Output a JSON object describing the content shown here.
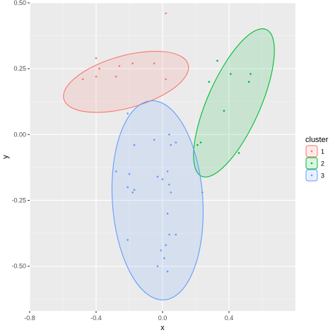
{
  "chart_data": {
    "type": "scatter",
    "xlabel": "x",
    "ylabel": "y",
    "xlim": [
      -0.8,
      0.8
    ],
    "ylim": [
      -0.67,
      0.5
    ],
    "xticks": [
      -0.8,
      -0.4,
      0.0,
      0.4
    ],
    "xtick_labels": [
      "-0.8",
      "-0.4",
      "0.0",
      "0.4"
    ],
    "yticks": [
      0.5,
      0.25,
      0.0,
      -0.25,
      -0.5
    ],
    "ytick_labels": [
      "0.50",
      "0.25",
      "0.00",
      "-0.25",
      "-0.50"
    ],
    "grid": true,
    "legend": {
      "title": "cluster",
      "placement": "right"
    },
    "series": [
      {
        "name": "1",
        "color": "#F8766D",
        "points": [
          {
            "x": -0.48,
            "y": 0.21
          },
          {
            "x": -0.4,
            "y": 0.29
          },
          {
            "x": -0.4,
            "y": 0.22
          },
          {
            "x": -0.38,
            "y": 0.25
          },
          {
            "x": -0.38,
            "y": 0.25
          },
          {
            "x": -0.28,
            "y": 0.22
          },
          {
            "x": -0.26,
            "y": 0.26
          },
          {
            "x": -0.18,
            "y": 0.27
          },
          {
            "x": -0.05,
            "y": 0.27
          },
          {
            "x": 0.02,
            "y": 0.46
          },
          {
            "x": 0.02,
            "y": 0.21
          }
        ],
        "ellipse": {
          "cx": -0.22,
          "cy": 0.2,
          "rx": 0.38,
          "ry": 0.1,
          "angle_deg": 10
        }
      },
      {
        "name": "2",
        "color": "#00BA38",
        "points": [
          {
            "x": 0.21,
            "y": -0.04
          },
          {
            "x": 0.23,
            "y": -0.03
          },
          {
            "x": 0.28,
            "y": 0.2
          },
          {
            "x": 0.33,
            "y": 0.28
          },
          {
            "x": 0.37,
            "y": 0.09
          },
          {
            "x": 0.41,
            "y": 0.23
          },
          {
            "x": 0.46,
            "y": -0.07
          },
          {
            "x": 0.52,
            "y": 0.2
          },
          {
            "x": 0.53,
            "y": 0.23
          }
        ],
        "ellipse": {
          "cx": 0.43,
          "cy": 0.12,
          "rx": 0.34,
          "ry": 0.13,
          "angle_deg": 55
        }
      },
      {
        "name": "3",
        "color": "#619CFF",
        "points": [
          {
            "x": -0.21,
            "y": 0.08
          },
          {
            "x": -0.17,
            "y": -0.04
          },
          {
            "x": -0.28,
            "y": -0.14
          },
          {
            "x": -0.2,
            "y": -0.15
          },
          {
            "x": -0.21,
            "y": -0.2
          },
          {
            "x": -0.17,
            "y": -0.21
          },
          {
            "x": -0.18,
            "y": -0.22
          },
          {
            "x": -0.21,
            "y": -0.4
          },
          {
            "x": -0.05,
            "y": -0.02
          },
          {
            "x": -0.03,
            "y": -0.16
          },
          {
            "x": 0.0,
            "y": -0.17
          },
          {
            "x": 0.04,
            "y": 0.0
          },
          {
            "x": 0.05,
            "y": -0.04
          },
          {
            "x": 0.08,
            "y": -0.03
          },
          {
            "x": 0.03,
            "y": -0.14
          },
          {
            "x": 0.04,
            "y": -0.19
          },
          {
            "x": 0.05,
            "y": -0.22
          },
          {
            "x": 0.03,
            "y": -0.3
          },
          {
            "x": 0.04,
            "y": -0.38
          },
          {
            "x": 0.08,
            "y": -0.38
          },
          {
            "x": 0.02,
            "y": -0.42
          },
          {
            "x": -0.01,
            "y": -0.44
          },
          {
            "x": 0.01,
            "y": -0.47
          },
          {
            "x": -0.03,
            "y": -0.5
          },
          {
            "x": 0.03,
            "y": -0.52
          },
          {
            "x": 0.24,
            "y": -0.22
          }
        ],
        "ellipse": {
          "cx": -0.03,
          "cy": -0.25,
          "rx": 0.38,
          "ry": 0.27,
          "angle_deg": 96
        }
      }
    ]
  }
}
